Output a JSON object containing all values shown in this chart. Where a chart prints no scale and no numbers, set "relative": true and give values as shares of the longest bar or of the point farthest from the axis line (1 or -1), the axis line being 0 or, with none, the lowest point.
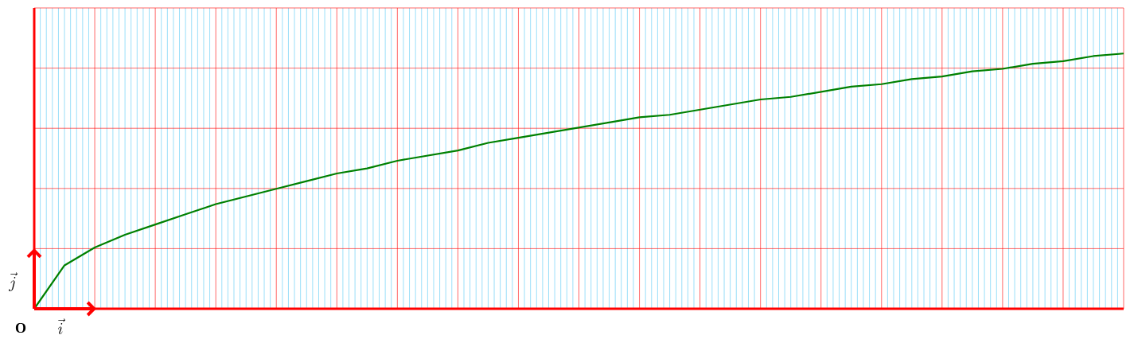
{
  "chart_data": {
    "type": "line",
    "relative": true,
    "grid": true,
    "color": "#008000",
    "categories": [
      null,
      null,
      null,
      null,
      null,
      null,
      null,
      null,
      null,
      null,
      null,
      null,
      null,
      null,
      null,
      null,
      null,
      null,
      null,
      null,
      null,
      null,
      null,
      null,
      null,
      null,
      null,
      null,
      null,
      null,
      null,
      null,
      null,
      null,
      null,
      null,
      null
    ],
    "values": [
      0,
      0.17,
      0.24,
      0.29,
      0.33,
      0.37,
      0.41,
      0.44,
      0.47,
      0.5,
      0.53,
      0.55,
      0.58,
      0.6,
      0.62,
      0.65,
      0.67,
      0.69,
      0.71,
      0.73,
      0.75,
      0.76,
      0.78,
      0.8,
      0.82,
      0.83,
      0.85,
      0.87,
      0.88,
      0.9,
      0.91,
      0.93,
      0.94,
      0.96,
      0.97,
      0.99,
      1
    ],
    "annotations": [
      "O",
      "\\vec{i}",
      "\\vec{j}"
    ]
  }
}
